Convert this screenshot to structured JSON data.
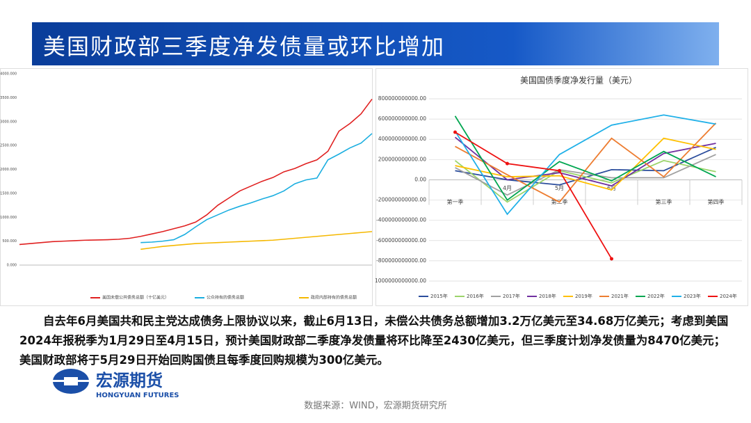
{
  "title": "美国财政部三季度净发债量或环比增加",
  "chart_data": [
    {
      "type": "line",
      "categories": [
        null,
        null,
        null,
        null,
        null,
        null,
        null,
        null,
        null,
        null,
        null,
        null,
        null,
        null,
        null,
        null,
        null,
        null,
        null,
        null,
        null,
        null,
        null,
        null,
        null,
        null,
        null,
        null,
        null,
        null,
        null,
        null,
        null
      ],
      "ylim": [
        0,
        4000
      ],
      "yticks": [
        {
          "value": 0,
          "label": "0.000"
        },
        {
          "value": 500,
          "label": "500.000"
        },
        {
          "value": 1000,
          "label": "1000.000"
        },
        {
          "value": 1500,
          "label": "1500.000"
        },
        {
          "value": 2000,
          "label": "2000.000"
        },
        {
          "value": 2500,
          "label": "2500.000"
        },
        {
          "value": 3000,
          "label": "3000.000"
        },
        {
          "value": 3500,
          "label": "3500.000"
        },
        {
          "value": 4000,
          "label": "4000.000"
        }
      ],
      "series": [
        {
          "name": "美国未偿公共债务总额（十亿美元）",
          "color": "#e02020",
          "values": [
            430,
            450,
            470,
            490,
            500,
            510,
            520,
            525,
            530,
            540,
            560,
            600,
            650,
            700,
            760,
            820,
            900,
            1050,
            1250,
            1400,
            1550,
            1650,
            1750,
            1830,
            1950,
            2020,
            2120,
            2200,
            2380,
            2800,
            2960,
            3160,
            3470
          ]
        },
        {
          "name": "公众持有的债务总额",
          "color": "#1aaee0",
          "values": [
            null,
            null,
            null,
            null,
            null,
            null,
            null,
            null,
            null,
            null,
            null,
            470,
            480,
            500,
            530,
            640,
            800,
            950,
            1050,
            1150,
            1230,
            1300,
            1380,
            1450,
            1550,
            1700,
            1780,
            1820,
            2200,
            2320,
            2450,
            2550,
            2750
          ]
        },
        {
          "name": "政府内部持有的债务总额",
          "color": "#f5b800",
          "values": [
            null,
            null,
            null,
            null,
            null,
            null,
            null,
            null,
            null,
            null,
            null,
            330,
            360,
            390,
            410,
            430,
            450,
            460,
            470,
            480,
            490,
            500,
            510,
            520,
            540,
            560,
            580,
            600,
            620,
            640,
            660,
            680,
            700
          ]
        }
      ]
    },
    {
      "type": "line",
      "title": "美国国债季度净发行量（美元）",
      "categories": [
        "第一季",
        "4月",
        "5月",
        "6月",
        "第三季",
        "第四季"
      ],
      "annotations": [
        "第二季"
      ],
      "ylim": [
        -1000000000000,
        800000000000
      ],
      "yticks": [
        {
          "value": -1000000000000,
          "label": "-1000000000000.00"
        },
        {
          "value": -800000000000,
          "label": "-800000000000.00"
        },
        {
          "value": -600000000000,
          "label": "-600000000000.00"
        },
        {
          "value": -400000000000,
          "label": "-400000000000.00"
        },
        {
          "value": -200000000000,
          "label": "-200000000000.00"
        },
        {
          "value": 0,
          "label": "0.00"
        },
        {
          "value": 200000000000,
          "label": "200000000000.00"
        },
        {
          "value": 400000000000,
          "label": "400000000000.00"
        },
        {
          "value": 600000000000,
          "label": "600000000000.00"
        },
        {
          "value": 800000000000,
          "label": "800000000000.00"
        }
      ],
      "series": [
        {
          "name": "2015年",
          "color": "#2b4d9c",
          "values": [
            90000000000,
            0,
            -50000000000,
            100000000000,
            90000000000,
            320000000000
          ]
        },
        {
          "name": "2016年",
          "color": "#9bd46a",
          "values": [
            190000000000,
            -220000000000,
            90000000000,
            -30000000000,
            190000000000,
            80000000000
          ]
        },
        {
          "name": "2017年",
          "color": "#a0a0a0",
          "values": [
            120000000000,
            -150000000000,
            100000000000,
            20000000000,
            20000000000,
            250000000000
          ]
        },
        {
          "name": "2018年",
          "color": "#7030a0",
          "values": [
            420000000000,
            0,
            70000000000,
            -60000000000,
            260000000000,
            360000000000
          ]
        },
        {
          "name": "2019年",
          "color": "#ffc000",
          "values": [
            140000000000,
            30000000000,
            40000000000,
            -100000000000,
            410000000000,
            300000000000
          ]
        },
        {
          "name": "2021年",
          "color": "#ed7d31",
          "values": [
            330000000000,
            50000000000,
            -220000000000,
            410000000000,
            30000000000,
            560000000000
          ]
        },
        {
          "name": "2022年",
          "color": "#00a650",
          "values": [
            630000000000,
            -200000000000,
            180000000000,
            -10000000000,
            280000000000,
            30000000000
          ]
        },
        {
          "name": "2023年",
          "color": "#1fb0e8",
          "values": [
            480000000000,
            -340000000000,
            250000000000,
            540000000000,
            640000000000,
            550000000000
          ]
        },
        {
          "name": "2024年",
          "color": "#ee1111",
          "values": [
            470000000000,
            160000000000,
            90000000000,
            -780000000000,
            null,
            null
          ]
        }
      ]
    }
  ],
  "paragraph": "自去年6月美国共和民主党达成债务上限协议以来，截止6月13日，未偿公共债务总额增加3.2万亿美元至34.68万亿美元；考虑到美国2024年报税季为1月29日至4月15日，预计美国财政部二季度净发债量将环比降至2430亿美元，但三季度计划净发债量为8470亿美元；美国财政部将于5月29日开始回购国债且每季度回购规模为300亿美元。",
  "logo": {
    "name": "宏源期货",
    "english": "HONGYUAN FUTURES"
  },
  "source": "数据来源：WIND，宏源期货研究所"
}
